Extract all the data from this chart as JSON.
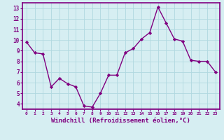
{
  "x": [
    0,
    1,
    2,
    3,
    4,
    5,
    6,
    7,
    8,
    9,
    10,
    11,
    12,
    13,
    14,
    15,
    16,
    17,
    18,
    19,
    20,
    21,
    22,
    23
  ],
  "y": [
    9.8,
    8.8,
    8.7,
    5.6,
    6.4,
    5.9,
    5.6,
    3.8,
    3.7,
    5.0,
    6.7,
    6.7,
    8.8,
    9.2,
    10.1,
    10.7,
    13.1,
    11.6,
    10.1,
    9.9,
    8.1,
    8.0,
    8.0,
    7.0
  ],
  "line_color": "#800080",
  "marker": "D",
  "marker_size": 2.2,
  "line_width": 1.0,
  "xlabel": "Windchill (Refroidissement éolien,°C)",
  "xlabel_fontsize": 6.5,
  "xtick_labels": [
    "0",
    "1",
    "2",
    "3",
    "4",
    "5",
    "6",
    "7",
    "8",
    "9",
    "10",
    "11",
    "12",
    "13",
    "14",
    "15",
    "16",
    "17",
    "18",
    "19",
    "20",
    "21",
    "22",
    "23"
  ],
  "ytick_min": 4,
  "ytick_max": 13,
  "ytick_step": 1,
  "ylim": [
    3.5,
    13.5
  ],
  "xlim": [
    -0.5,
    23.5
  ],
  "background_color": "#d6eef2",
  "grid_color": "#b0d8e0",
  "tick_color": "#800080",
  "label_color": "#800080",
  "spine_color": "#800080"
}
